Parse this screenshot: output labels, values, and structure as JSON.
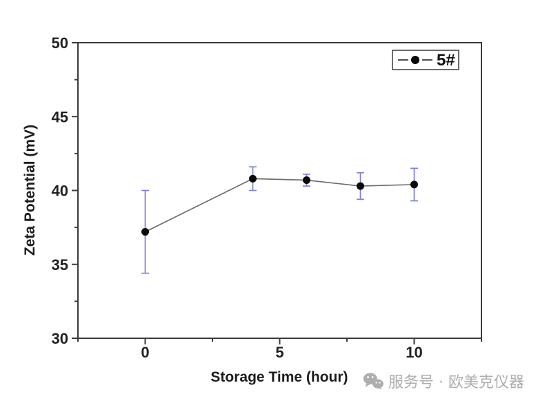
{
  "chart_data": {
    "type": "line",
    "title": "",
    "xlabel": "Storage Time (hour)",
    "ylabel": "Zeta Potential (mV)",
    "xlim": [
      -2.5,
      12.5
    ],
    "ylim": [
      30,
      50
    ],
    "grid": false,
    "x_major_ticks": [
      0,
      5,
      10
    ],
    "x_minor_ticks": [
      -2.5,
      2.5,
      7.5,
      12.5
    ],
    "y_major_ticks": [
      30,
      35,
      40,
      45,
      50
    ],
    "y_minor_ticks": [
      32.5,
      37.5,
      42.5,
      47.5
    ],
    "series": [
      {
        "name": "5#",
        "x": [
          0,
          4,
          6,
          8,
          10
        ],
        "y": [
          37.2,
          40.8,
          40.7,
          40.3,
          40.4
        ],
        "yerr": [
          2.8,
          0.8,
          0.4,
          0.9,
          1.1
        ]
      }
    ],
    "legend": {
      "label": "5#",
      "position": "top-right",
      "boxed": true
    },
    "colors": {
      "axis": "#3a3a3a",
      "line": "#6e6e6e",
      "marker": "#0a0a0a",
      "error_bar": "#8080d5",
      "background": "#ffffff"
    }
  },
  "watermark": {
    "icon": "wechat-icon",
    "text": "服务号 · 欧美克仪器",
    "color": "#aeaeae"
  }
}
